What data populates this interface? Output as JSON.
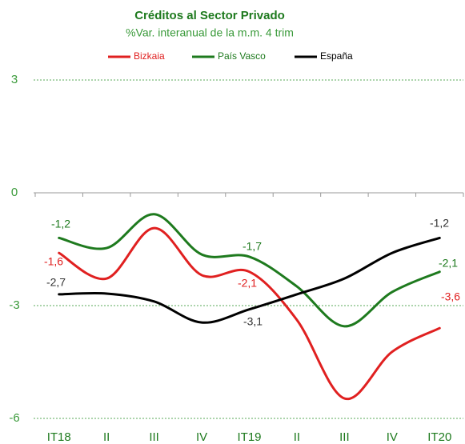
{
  "chart_data": {
    "type": "line",
    "title": "Créditos al Sector Privado",
    "subtitle": "%Var. interanual de la m.m. 4 trim",
    "categories": [
      "IT18",
      "II",
      "III",
      "IV",
      "IT19",
      "II",
      "III",
      "IV",
      "IT20"
    ],
    "series": [
      {
        "name": "Bizkaia",
        "color": "#e02020",
        "values": [
          -1.6,
          -2.28,
          -0.94,
          -2.19,
          -2.1,
          -3.38,
          -5.47,
          -4.23,
          -3.6
        ],
        "value_labels": [
          "-1,6",
          null,
          null,
          null,
          "-2,1",
          null,
          null,
          null,
          "-3,6"
        ]
      },
      {
        "name": "País Vasco",
        "color": "#1e7a1e",
        "values": [
          -1.2,
          -1.47,
          -0.57,
          -1.64,
          -1.7,
          -2.49,
          -3.55,
          -2.64,
          -2.1
        ],
        "value_labels": [
          "-1,2",
          null,
          null,
          null,
          "-1,7",
          null,
          null,
          null,
          "-2,1"
        ]
      },
      {
        "name": "España",
        "color": "#000000",
        "values": [
          -2.7,
          -2.68,
          -2.89,
          -3.45,
          -3.1,
          -2.7,
          -2.28,
          -1.6,
          -1.2
        ],
        "value_labels": [
          "-2,7",
          null,
          null,
          null,
          "-3,1",
          null,
          null,
          null,
          "-1,2"
        ]
      }
    ],
    "ylim": [
      -6,
      3
    ],
    "yticks": [
      -6,
      -3,
      0,
      3
    ],
    "grid": true,
    "legend": "top"
  }
}
